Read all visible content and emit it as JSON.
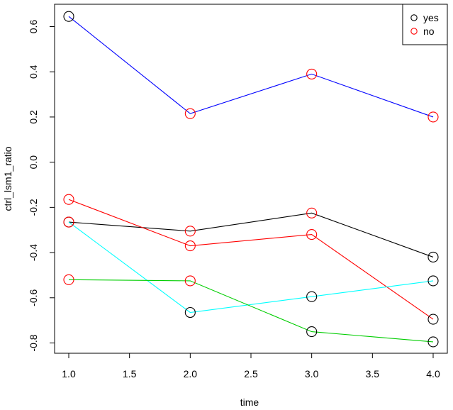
{
  "chart_data": {
    "type": "line",
    "xlabel": "time",
    "ylabel": "ctrl_lsm1_ratio",
    "xlim": [
      1.0,
      4.0
    ],
    "ylim": [
      -0.8,
      0.6
    ],
    "x_ticks": [
      "1.0",
      "1.5",
      "2.0",
      "2.5",
      "3.0",
      "3.5",
      "4.0"
    ],
    "x_tick_values": [
      1.0,
      1.5,
      2.0,
      2.5,
      3.0,
      3.5,
      4.0
    ],
    "y_ticks": [
      "-0.8",
      "-0.6",
      "-0.4",
      "-0.2",
      "0.0",
      "0.2",
      "0.4",
      "0.6"
    ],
    "y_tick_values": [
      -0.8,
      -0.6,
      -0.4,
      -0.2,
      0.0,
      0.2,
      0.4,
      0.6
    ],
    "grid": false,
    "legend": {
      "position": "top-right",
      "entries": [
        {
          "label": "yes",
          "color": "#000000"
        },
        {
          "label": "no",
          "color": "#ff0000"
        }
      ]
    },
    "series": [
      {
        "color": "#0000ff",
        "x": [
          1,
          2,
          3,
          4
        ],
        "y": [
          0.645,
          0.215,
          0.39,
          0.2
        ],
        "markers": [
          "yes",
          "no",
          "no",
          "no"
        ]
      },
      {
        "color": "#000000",
        "x": [
          1,
          2,
          3,
          4
        ],
        "y": [
          -0.265,
          -0.305,
          -0.225,
          -0.42
        ],
        "markers": [
          "yes",
          "no",
          "no",
          "yes"
        ]
      },
      {
        "color": "#ff0000",
        "x": [
          1,
          2,
          3,
          4
        ],
        "y": [
          -0.165,
          -0.37,
          -0.32,
          -0.695
        ],
        "markers": [
          "no",
          "no",
          "no",
          "yes"
        ]
      },
      {
        "color": "#00ffff",
        "x": [
          1,
          2,
          3,
          4
        ],
        "y": [
          -0.265,
          -0.665,
          -0.595,
          -0.525
        ],
        "markers": [
          "no",
          "yes",
          "yes",
          "yes"
        ]
      },
      {
        "color": "#00cd00",
        "x": [
          1,
          2,
          3,
          4
        ],
        "y": [
          -0.52,
          -0.525,
          -0.75,
          -0.795
        ],
        "markers": [
          "no",
          "no",
          "yes",
          "yes"
        ]
      }
    ]
  }
}
